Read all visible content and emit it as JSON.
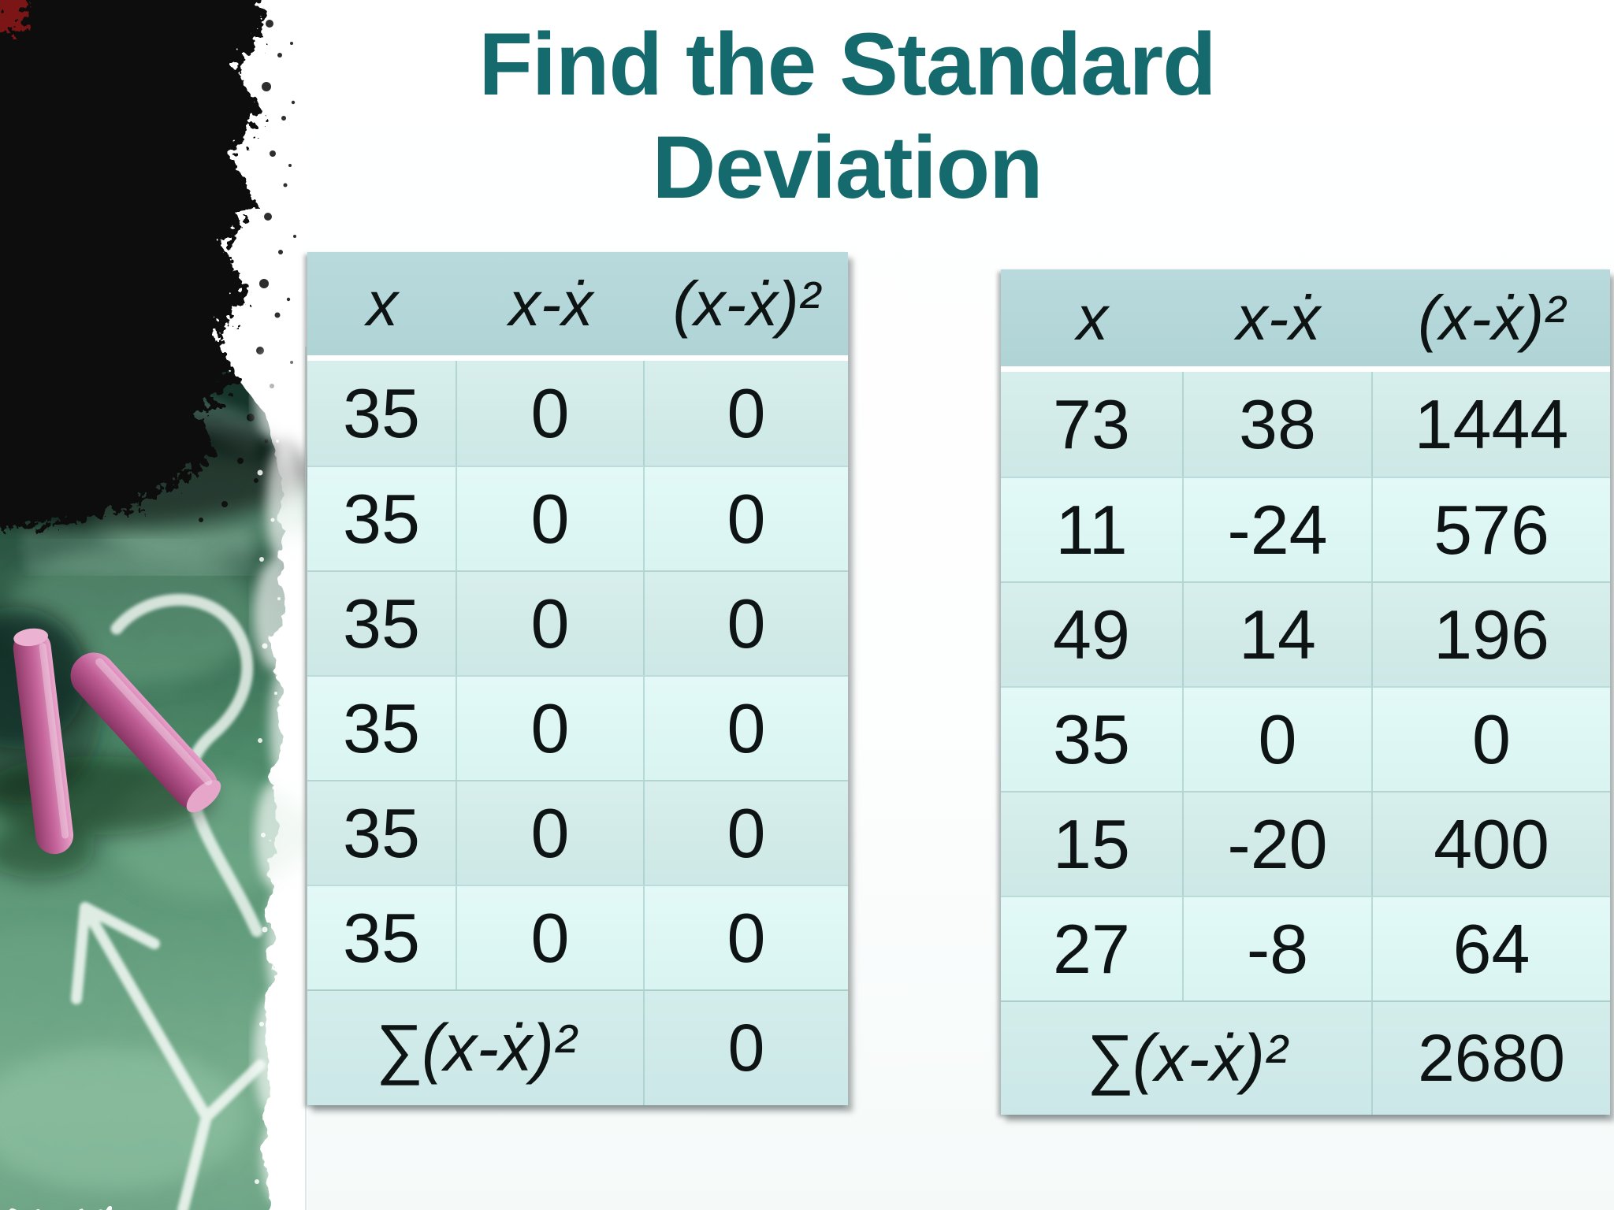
{
  "slide": {
    "title": "Find the Standard\nDeviation"
  },
  "tables": [
    {
      "name": "left-table",
      "headers": [
        "x",
        "x-ẋ",
        "(x-ẋ)²"
      ],
      "rows": [
        [
          "35",
          "0",
          "0"
        ],
        [
          "35",
          "0",
          "0"
        ],
        [
          "35",
          "0",
          "0"
        ],
        [
          "35",
          "0",
          "0"
        ],
        [
          "35",
          "0",
          "0"
        ],
        [
          "35",
          "0",
          "0"
        ]
      ],
      "footer": {
        "label": "∑(x-ẋ)²",
        "value": "0"
      }
    },
    {
      "name": "right-table",
      "headers": [
        "x",
        "x-ẋ",
        "(x-ẋ)²"
      ],
      "rows": [
        [
          "73",
          "38",
          "1444"
        ],
        [
          "11",
          "-24",
          "576"
        ],
        [
          "49",
          "14",
          "196"
        ],
        [
          "35",
          "0",
          "0"
        ],
        [
          "15",
          "-20",
          "400"
        ],
        [
          "27",
          "-8",
          "64"
        ]
      ],
      "footer": {
        "label": "∑(x-ẋ)²",
        "value": "2680"
      }
    }
  ],
  "theme": {
    "title_color": "#156a6d",
    "table_header_bg": "#b4d7d9",
    "row_dark_bg": "#d2ebe9",
    "row_light_bg": "#def7f5",
    "sum_row_bg": "#cfeae9",
    "text_color": "#0d1413",
    "page_bg": "#ffffff"
  },
  "decor": {
    "chalkboard_alt": "black ink smudge over a green chalkboard, two pink chalk sticks, white chalk question mark and arrow",
    "board_green_dark": "#16332a",
    "board_green_mid": "#4d8a6a",
    "board_green_light": "#7bb191",
    "chalk_pink": "#c4639a",
    "chalk_white": "#f6fbf7",
    "ink_black": "#070707"
  }
}
